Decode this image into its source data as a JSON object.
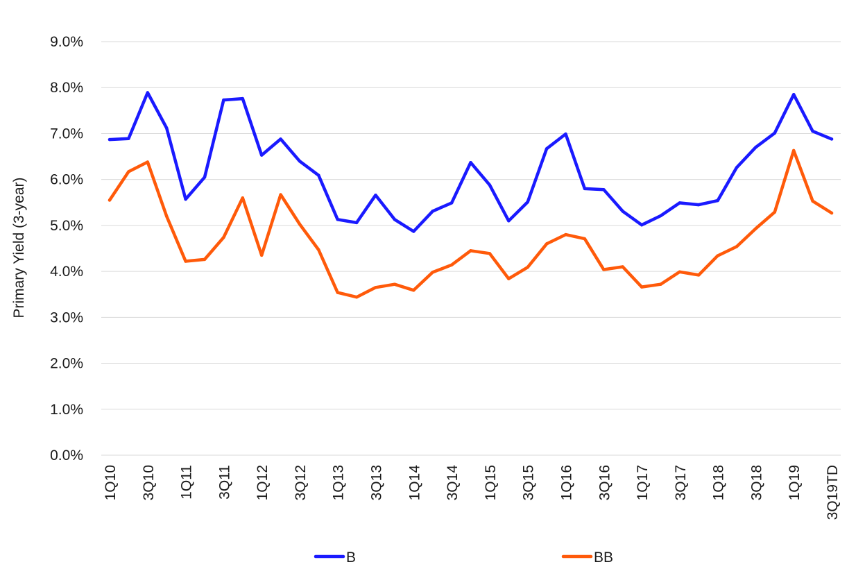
{
  "chart_data": {
    "type": "line",
    "title": "",
    "xlabel": "",
    "ylabel": "Primary Yield (3-year)",
    "ylim": [
      0,
      9
    ],
    "y_tick_labels": [
      "0.0%",
      "1.0%",
      "2.0%",
      "3.0%",
      "4.0%",
      "5.0%",
      "6.0%",
      "7.0%",
      "8.0%",
      "9.0%"
    ],
    "x_tick_labels": [
      "1Q10",
      "3Q10",
      "1Q11",
      "3Q11",
      "1Q12",
      "3Q12",
      "1Q13",
      "3Q13",
      "1Q14",
      "3Q14",
      "1Q15",
      "3Q15",
      "1Q16",
      "3Q16",
      "1Q17",
      "3Q17",
      "1Q18",
      "3Q18",
      "1Q19",
      "3Q19TD"
    ],
    "x": [
      "1Q10",
      "2Q10",
      "3Q10",
      "4Q10",
      "1Q11",
      "2Q11",
      "3Q11",
      "4Q11",
      "1Q12",
      "2Q12",
      "3Q12",
      "4Q12",
      "1Q13",
      "2Q13",
      "3Q13",
      "4Q13",
      "1Q14",
      "2Q14",
      "3Q14",
      "4Q14",
      "1Q15",
      "2Q15",
      "3Q15",
      "4Q15",
      "1Q16",
      "2Q16",
      "3Q16",
      "4Q16",
      "1Q17",
      "2Q17",
      "3Q17",
      "4Q17",
      "1Q18",
      "2Q18",
      "3Q18",
      "4Q18",
      "1Q19",
      "2Q19",
      "3Q19TD"
    ],
    "grid": true,
    "legend_position": "bottom",
    "series": [
      {
        "name": "B",
        "color": "#1a1aff",
        "values": [
          6.87,
          6.89,
          7.89,
          7.12,
          5.57,
          6.05,
          7.73,
          7.76,
          6.53,
          6.88,
          6.4,
          6.09,
          5.13,
          5.06,
          5.66,
          5.13,
          4.87,
          5.31,
          5.49,
          6.37,
          5.88,
          5.1,
          5.51,
          6.67,
          6.99,
          5.8,
          5.78,
          5.31,
          5.01,
          5.21,
          5.49,
          5.45,
          5.54,
          6.26,
          6.7,
          7.01,
          7.85,
          7.05,
          6.88
        ]
      },
      {
        "name": "BB",
        "color": "#ff5a0a",
        "values": [
          5.55,
          6.17,
          6.38,
          5.2,
          4.22,
          4.26,
          4.74,
          5.6,
          4.35,
          5.67,
          5.03,
          4.47,
          3.54,
          3.44,
          3.65,
          3.72,
          3.59,
          3.98,
          4.14,
          4.45,
          4.39,
          3.84,
          4.09,
          4.6,
          4.8,
          4.71,
          4.04,
          4.1,
          3.66,
          3.72,
          3.99,
          3.92,
          4.34,
          4.54,
          4.93,
          5.29,
          6.63,
          5.53,
          5.27
        ]
      }
    ]
  }
}
